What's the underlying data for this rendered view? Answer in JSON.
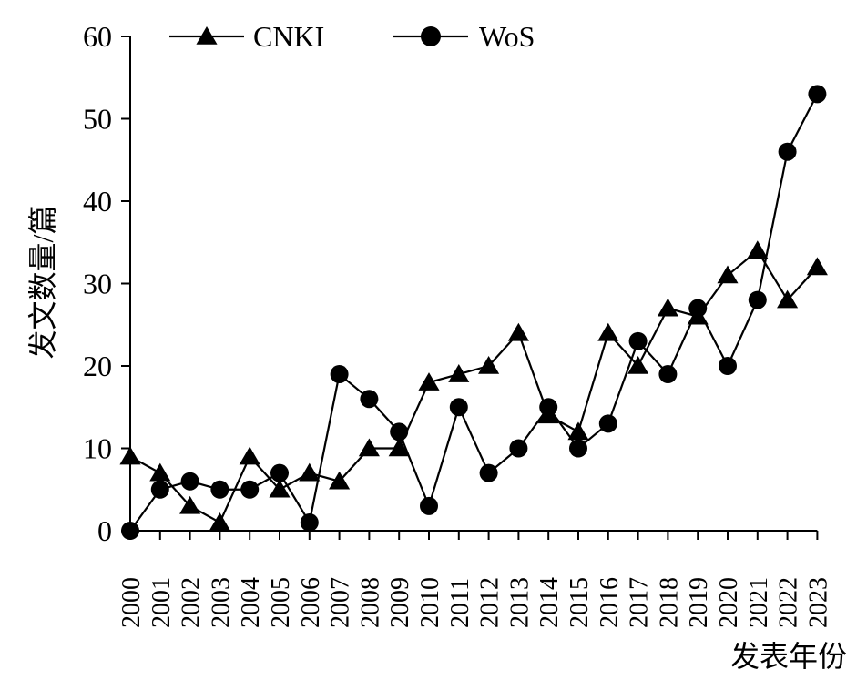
{
  "chart_data": {
    "type": "line",
    "title": "",
    "xlabel": "发表年份",
    "ylabel": "发文数量/篇",
    "ylim": [
      0,
      60
    ],
    "yticks": [
      0,
      10,
      20,
      30,
      40,
      50,
      60
    ],
    "grid": false,
    "legend_position": "top",
    "categories": [
      "2000",
      "2001",
      "2002",
      "2003",
      "2004",
      "2005",
      "2006",
      "2007",
      "2008",
      "2009",
      "2010",
      "2011",
      "2012",
      "2013",
      "2014",
      "2015",
      "2016",
      "2017",
      "2018",
      "2019",
      "2020",
      "2021",
      "2022",
      "2023"
    ],
    "series": [
      {
        "name": "CNKI",
        "marker": "triangle",
        "color": "#000000",
        "values": [
          9,
          7,
          3,
          1,
          9,
          5,
          7,
          6,
          10,
          10,
          18,
          19,
          20,
          24,
          14,
          12,
          24,
          20,
          27,
          26,
          31,
          34,
          28,
          32
        ]
      },
      {
        "name": "WoS",
        "marker": "circle",
        "color": "#000000",
        "values": [
          0,
          5,
          6,
          5,
          5,
          7,
          1,
          19,
          16,
          12,
          3,
          15,
          7,
          10,
          15,
          10,
          13,
          23,
          19,
          27,
          20,
          28,
          46,
          53
        ]
      }
    ]
  }
}
